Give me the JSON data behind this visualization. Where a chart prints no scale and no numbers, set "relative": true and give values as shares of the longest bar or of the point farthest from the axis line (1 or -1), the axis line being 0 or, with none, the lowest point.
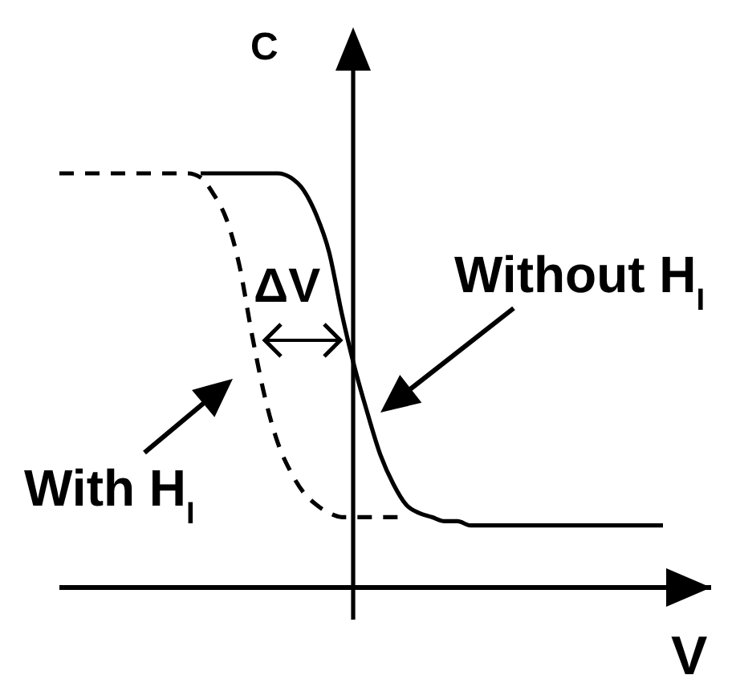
{
  "chart_data": {
    "type": "line",
    "relative": true,
    "xlabel": "V",
    "ylabel": "C",
    "categories": [
      null,
      null,
      null,
      null,
      null,
      null,
      null,
      null,
      null,
      null,
      null,
      null,
      null,
      null,
      null,
      null,
      null,
      null,
      null,
      null,
      null,
      null,
      null,
      null,
      null,
      null,
      null,
      null,
      null,
      null,
      null,
      null,
      null,
      null,
      null,
      null,
      null,
      null,
      null,
      null,
      null,
      null,
      null,
      null,
      null,
      null,
      null,
      null
    ],
    "series": [
      {
        "name": "Without H$_{I}$",
        "color": "#000000",
        "line_style": "solid",
        "values": [
          null,
          null,
          null,
          null,
          null,
          null,
          null,
          null,
          null,
          null,
          null,
          1.0,
          1.0,
          1.0,
          1.0,
          1.0,
          1.0,
          1.0,
          0.99,
          0.96,
          0.9,
          0.81,
          0.66,
          0.53,
          0.42,
          0.32,
          0.25,
          0.2,
          0.18,
          0.17,
          0.16,
          0.16,
          0.15,
          0.15,
          0.15,
          0.15,
          0.15,
          0.15,
          0.15,
          0.15,
          0.15,
          0.15,
          0.15,
          0.15,
          0.15,
          0.15,
          0.15,
          0.15
        ]
      },
      {
        "name": "With H$_{I}$",
        "color": "#000000",
        "line_style": "dashed",
        "values": [
          1.0,
          1.0,
          1.0,
          1.0,
          1.0,
          1.0,
          1.0,
          1.0,
          1.0,
          1.0,
          1.0,
          0.99,
          0.95,
          0.89,
          0.78,
          0.61,
          0.46,
          0.35,
          0.28,
          0.23,
          0.2,
          0.18,
          0.17,
          0.17,
          0.17,
          0.17,
          0.17,
          0.17,
          null,
          null,
          null,
          null,
          null,
          null,
          null,
          null,
          null,
          null,
          null,
          null,
          null,
          null,
          null,
          null,
          null,
          null,
          null,
          null
        ]
      }
    ],
    "annotations": [
      "ΔV"
    ]
  }
}
